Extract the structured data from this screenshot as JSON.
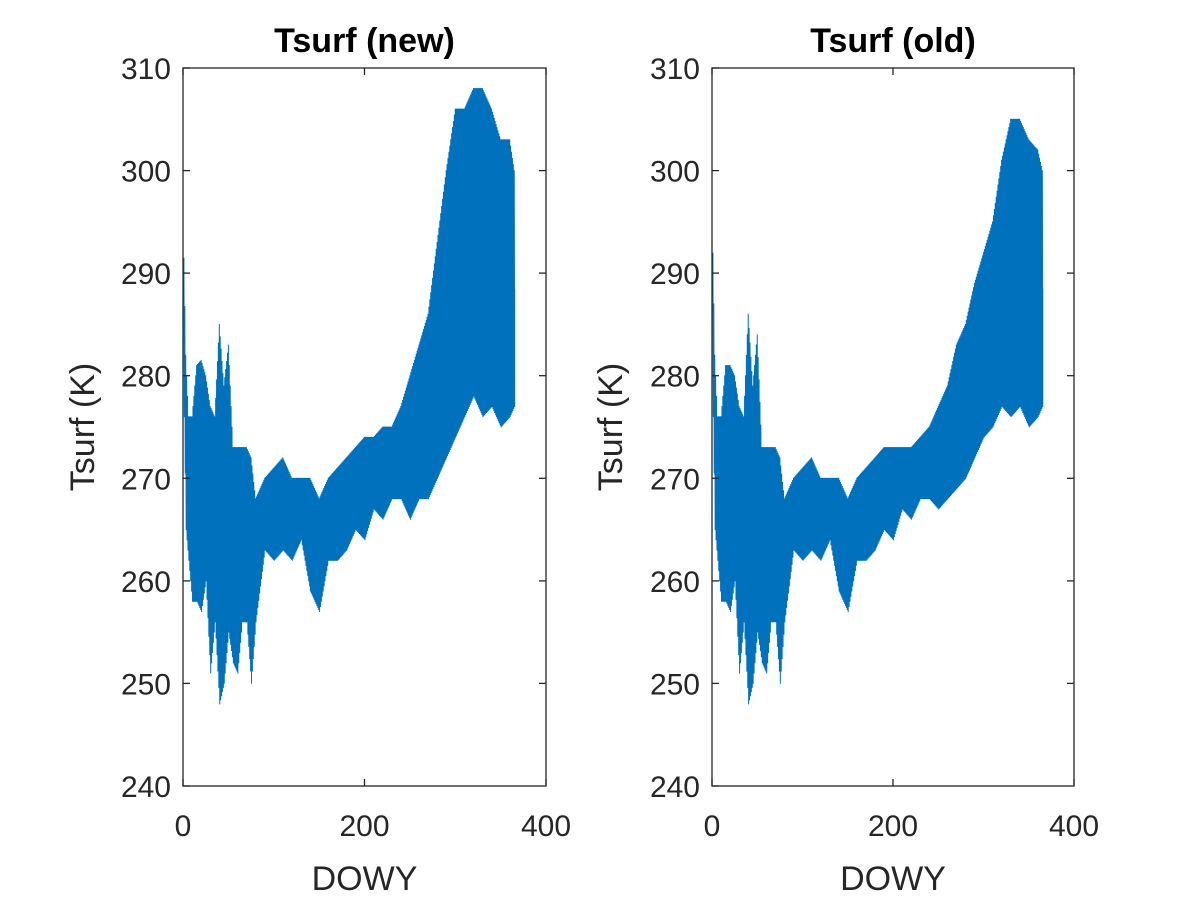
{
  "chart_data": [
    {
      "type": "line",
      "title": "Tsurf (new)",
      "xlabel": "DOWY",
      "ylabel": "Tsurf (K)",
      "xlim": [
        0,
        400
      ],
      "ylim": [
        240,
        310
      ],
      "xticks": [
        "0",
        "200",
        "400"
      ],
      "yticks": [
        "240",
        "250",
        "260",
        "270",
        "280",
        "290",
        "300",
        "310"
      ],
      "grid": false,
      "series": [
        {
          "color": "#0072BD",
          "x": [
            1,
            3,
            6,
            10,
            15,
            20,
            25,
            30,
            35,
            40,
            45,
            50,
            55,
            60,
            65,
            70,
            75,
            80,
            90,
            100,
            110,
            120,
            130,
            140,
            150,
            160,
            170,
            180,
            190,
            200,
            210,
            220,
            230,
            240,
            250,
            260,
            270,
            280,
            290,
            300,
            310,
            320,
            330,
            340,
            350,
            360,
            365
          ],
          "y_min": [
            276,
            265,
            262,
            258,
            258,
            257,
            260,
            251,
            256,
            248,
            250,
            255,
            252,
            251,
            256,
            256,
            250,
            256,
            263,
            262,
            263,
            262,
            264,
            259,
            257,
            262,
            262,
            263,
            265,
            264,
            267,
            266,
            268,
            268,
            266,
            268,
            268,
            270,
            272,
            274,
            276,
            278,
            276,
            277,
            275,
            276,
            277
          ],
          "y_max": [
            291.5,
            282,
            276,
            276,
            281,
            281.5,
            280,
            277,
            276,
            285,
            279,
            283,
            273,
            273,
            273,
            273,
            272,
            268,
            270,
            271,
            272,
            270,
            270,
            270,
            268,
            270,
            271,
            272,
            273,
            274,
            274,
            275,
            275,
            277,
            280,
            283,
            286,
            293,
            300,
            306,
            306,
            308,
            308,
            306,
            303,
            303,
            300
          ]
        }
      ]
    },
    {
      "type": "line",
      "title": "Tsurf (old)",
      "xlabel": "DOWY",
      "ylabel": "Tsurf (K)",
      "xlim": [
        0,
        400
      ],
      "ylim": [
        240,
        310
      ],
      "xticks": [
        "0",
        "200",
        "400"
      ],
      "yticks": [
        "240",
        "250",
        "260",
        "270",
        "280",
        "290",
        "300",
        "310"
      ],
      "grid": false,
      "series": [
        {
          "color": "#0072BD",
          "x": [
            1,
            3,
            6,
            10,
            15,
            20,
            25,
            30,
            35,
            40,
            45,
            50,
            55,
            60,
            65,
            70,
            75,
            80,
            90,
            100,
            110,
            120,
            130,
            140,
            150,
            160,
            170,
            180,
            190,
            200,
            210,
            220,
            230,
            240,
            250,
            260,
            270,
            280,
            290,
            300,
            310,
            320,
            330,
            340,
            350,
            360,
            365
          ],
          "y_min": [
            276,
            265,
            262,
            258,
            258,
            257,
            260,
            251,
            256,
            248,
            250,
            255,
            252,
            251,
            256,
            256,
            250,
            256,
            263,
            262,
            263,
            262,
            264,
            259,
            257,
            262,
            262,
            263,
            265,
            264,
            267,
            266,
            268,
            268,
            267,
            268,
            269,
            270,
            272,
            274,
            275,
            277,
            276,
            277,
            275,
            276,
            277
          ],
          "y_max": [
            292,
            282,
            276,
            276,
            281,
            281,
            280,
            277,
            276,
            286,
            279,
            284,
            273,
            273,
            273,
            273,
            272,
            268,
            270,
            271,
            272,
            270,
            270,
            270,
            268,
            270,
            271,
            272,
            273,
            273,
            273,
            273,
            274,
            275,
            277,
            279,
            283,
            285,
            289,
            292,
            295,
            301,
            305,
            305,
            303,
            302,
            300
          ]
        }
      ]
    }
  ]
}
